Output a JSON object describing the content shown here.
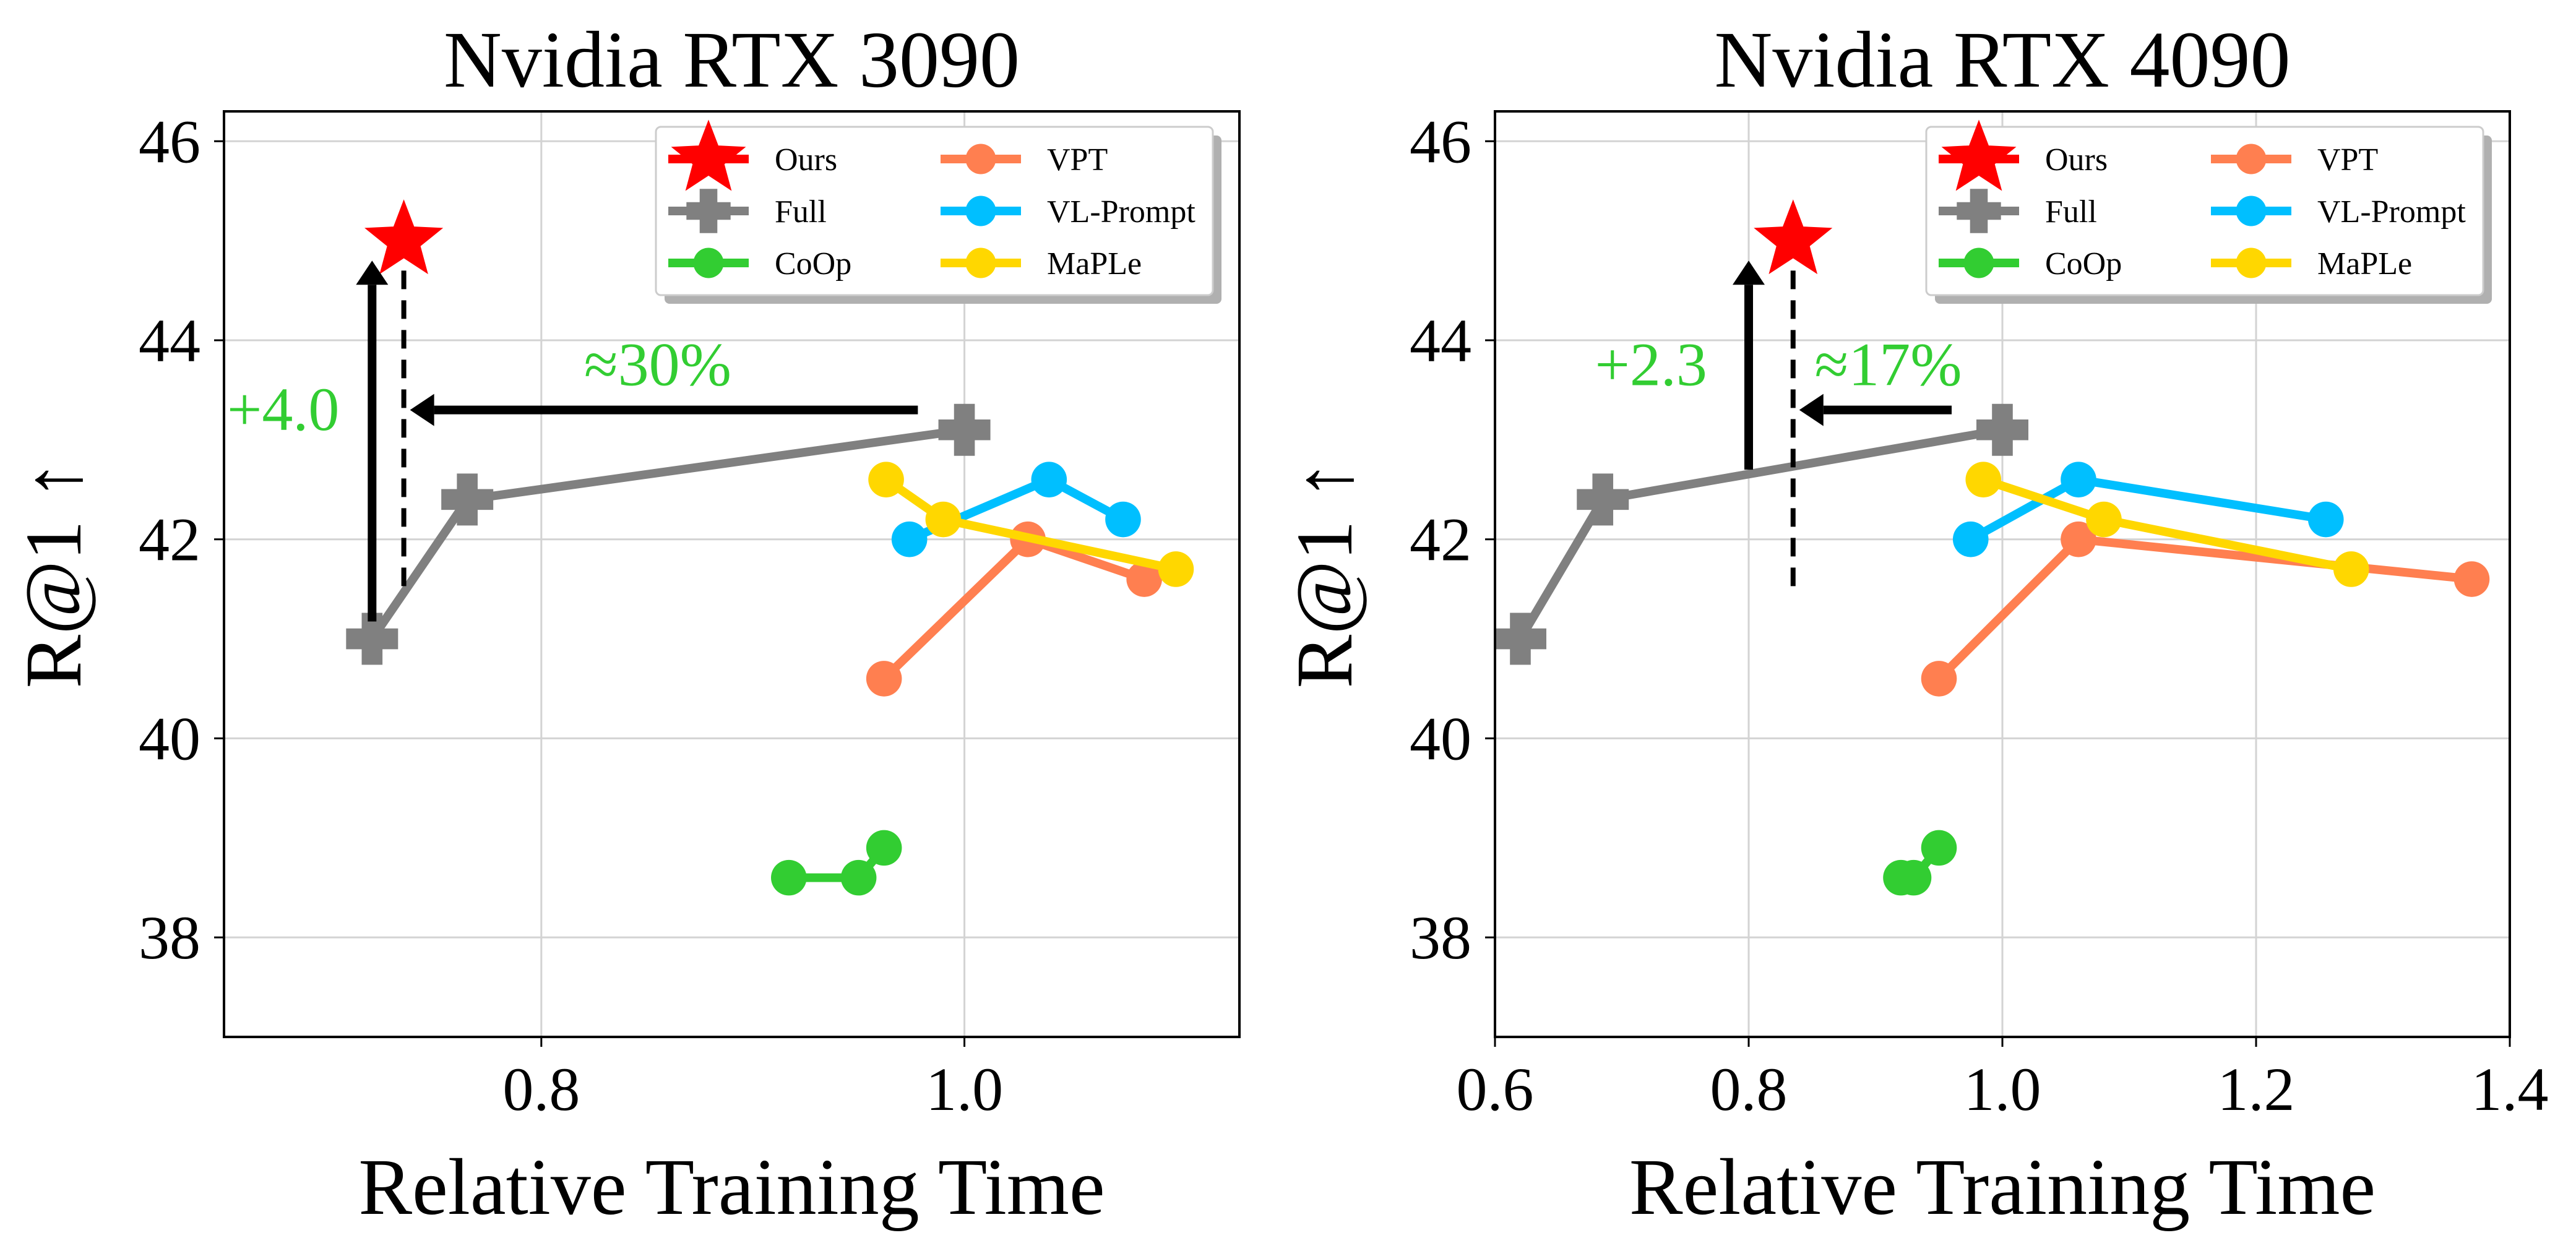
{
  "chart_data": [
    {
      "type": "line",
      "title": "Nvidia RTX 3090",
      "xlabel": "Relative Training Time",
      "ylabel": "R@1 ↑",
      "xlim": [
        0.65,
        1.13
      ],
      "ylim": [
        37.0,
        46.3
      ],
      "xticks": [
        0.8,
        1.0
      ],
      "xtick_labels": [
        "0.8",
        "1.0"
      ],
      "yticks": [
        38,
        40,
        42,
        44,
        46
      ],
      "ytick_labels": [
        "38",
        "40",
        "42",
        "44",
        "46"
      ],
      "grid": true,
      "legend_position": "top-right",
      "series": [
        {
          "name": "Ours",
          "color": "#ff0000",
          "marker": "star",
          "points": [
            [
              0.735,
              45.0
            ]
          ]
        },
        {
          "name": "Full",
          "color": "#808080",
          "marker": "plus",
          "points": [
            [
              0.72,
              41.0
            ],
            [
              0.765,
              42.4
            ],
            [
              1.0,
              43.1
            ]
          ]
        },
        {
          "name": "CoOp",
          "color": "#32cd32",
          "marker": "circle",
          "points": [
            [
              0.917,
              38.6
            ],
            [
              0.95,
              38.6
            ],
            [
              0.962,
              38.9
            ]
          ]
        },
        {
          "name": "VPT",
          "color": "#ff7f50",
          "marker": "circle",
          "points": [
            [
              0.962,
              40.6
            ],
            [
              1.03,
              42.0
            ],
            [
              1.085,
              41.6
            ]
          ]
        },
        {
          "name": "VL-Prompt",
          "color": "#00bfff",
          "marker": "circle",
          "points": [
            [
              0.974,
              42.0
            ],
            [
              1.04,
              42.6
            ],
            [
              1.075,
              42.2
            ]
          ]
        },
        {
          "name": "MaPLe",
          "color": "#ffd700",
          "marker": "circle",
          "points": [
            [
              0.963,
              42.6
            ],
            [
              0.99,
              42.2
            ],
            [
              1.1,
              41.7
            ]
          ]
        }
      ],
      "annotations": [
        {
          "text": "+4.0",
          "color": "#32cd32"
        },
        {
          "text": "≈30%",
          "color": "#32cd32"
        }
      ]
    },
    {
      "type": "line",
      "title": "Nvidia RTX 4090",
      "xlabel": "Relative Training Time",
      "ylabel": "R@1 ↑",
      "xlim": [
        0.6,
        1.4
      ],
      "ylim": [
        37.0,
        46.3
      ],
      "xticks": [
        0.6,
        0.8,
        1.0,
        1.2,
        1.4
      ],
      "xtick_labels": [
        "0.6",
        "0.8",
        "1.0",
        "1.2",
        "1.4"
      ],
      "yticks": [
        38,
        40,
        42,
        44,
        46
      ],
      "ytick_labels": [
        "38",
        "40",
        "42",
        "44",
        "46"
      ],
      "grid": true,
      "legend_position": "top-right",
      "series": [
        {
          "name": "Ours",
          "color": "#ff0000",
          "marker": "star",
          "points": [
            [
              0.835,
              45.0
            ]
          ]
        },
        {
          "name": "Full",
          "color": "#808080",
          "marker": "plus",
          "points": [
            [
              0.62,
              41.0
            ],
            [
              0.685,
              42.4
            ],
            [
              1.0,
              43.1
            ]
          ]
        },
        {
          "name": "CoOp",
          "color": "#32cd32",
          "marker": "circle",
          "points": [
            [
              0.92,
              38.6
            ],
            [
              0.93,
              38.6
            ],
            [
              0.95,
              38.9
            ]
          ]
        },
        {
          "name": "VPT",
          "color": "#ff7f50",
          "marker": "circle",
          "points": [
            [
              0.95,
              40.6
            ],
            [
              1.06,
              42.0
            ],
            [
              1.37,
              41.6
            ]
          ]
        },
        {
          "name": "VL-Prompt",
          "color": "#00bfff",
          "marker": "circle",
          "points": [
            [
              0.975,
              42.0
            ],
            [
              1.06,
              42.6
            ],
            [
              1.255,
              42.2
            ]
          ]
        },
        {
          "name": "MaPLe",
          "color": "#ffd700",
          "marker": "circle",
          "points": [
            [
              0.985,
              42.6
            ],
            [
              1.08,
              42.2
            ],
            [
              1.275,
              41.7
            ]
          ]
        }
      ],
      "annotations": [
        {
          "text": "+2.3",
          "color": "#32cd32"
        },
        {
          "text": "≈17%",
          "color": "#32cd32"
        }
      ]
    }
  ]
}
